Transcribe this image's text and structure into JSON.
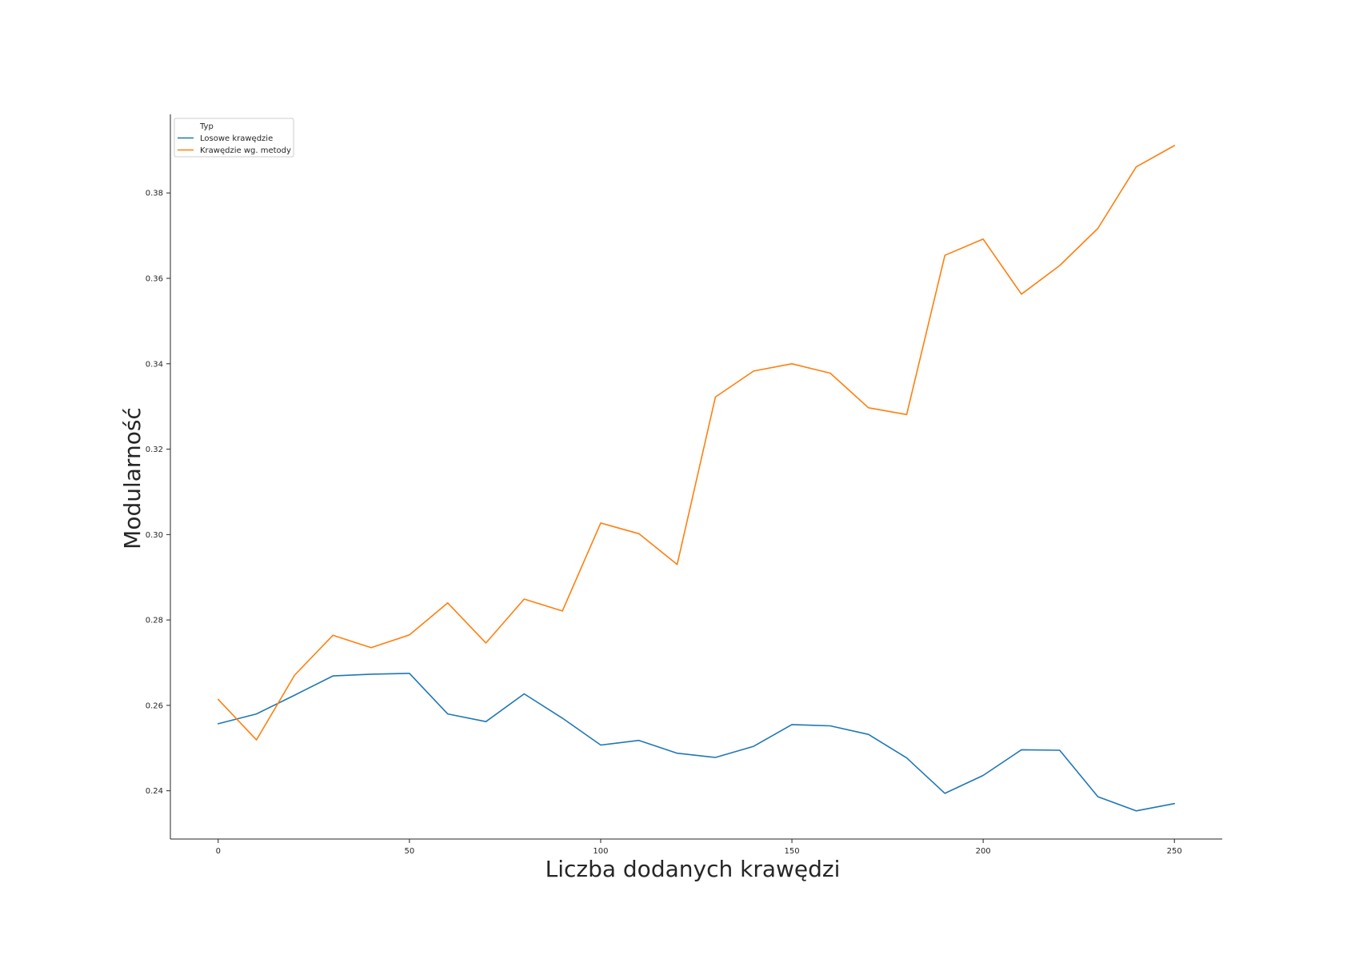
{
  "chart_data": {
    "type": "line",
    "title": "",
    "xlabel": "Liczba dodanych krawędzi",
    "ylabel": "Modularność",
    "xlim": [
      -12.5,
      262.5
    ],
    "ylim": [
      0.2287,
      0.3984
    ],
    "x_ticks": [
      0,
      50,
      100,
      150,
      200,
      250
    ],
    "y_ticks": [
      0.24,
      0.26,
      0.28,
      0.3,
      0.32,
      0.34,
      0.36,
      0.38
    ],
    "x": [
      0,
      10,
      20,
      30,
      40,
      50,
      60,
      70,
      80,
      90,
      100,
      110,
      120,
      130,
      140,
      150,
      160,
      170,
      180,
      190,
      200,
      210,
      220,
      230,
      240,
      250
    ],
    "grid": false,
    "legend": {
      "title": "Typ",
      "position": "top-left"
    },
    "series": [
      {
        "name": "Losowe krawędzie",
        "color": "#1f77b4",
        "values": [
          0.2557,
          0.258,
          0.2624,
          0.2669,
          0.2673,
          0.2675,
          0.258,
          0.2562,
          0.2627,
          0.257,
          0.2507,
          0.2518,
          0.2488,
          0.2478,
          0.2504,
          0.2555,
          0.2552,
          0.2532,
          0.2477,
          0.2394,
          0.2436,
          0.2496,
          0.2495,
          0.2386,
          0.2353,
          0.237
        ]
      },
      {
        "name": "Krawędzie wg. metody",
        "color": "#ff7f0e",
        "values": [
          0.2614,
          0.2519,
          0.2671,
          0.2764,
          0.2735,
          0.2765,
          0.284,
          0.2746,
          0.2849,
          0.2821,
          0.3027,
          0.3002,
          0.293,
          0.3322,
          0.3383,
          0.34,
          0.3378,
          0.3297,
          0.3281,
          0.3654,
          0.3692,
          0.3563,
          0.363,
          0.3717,
          0.3861,
          0.3911
        ]
      }
    ]
  }
}
